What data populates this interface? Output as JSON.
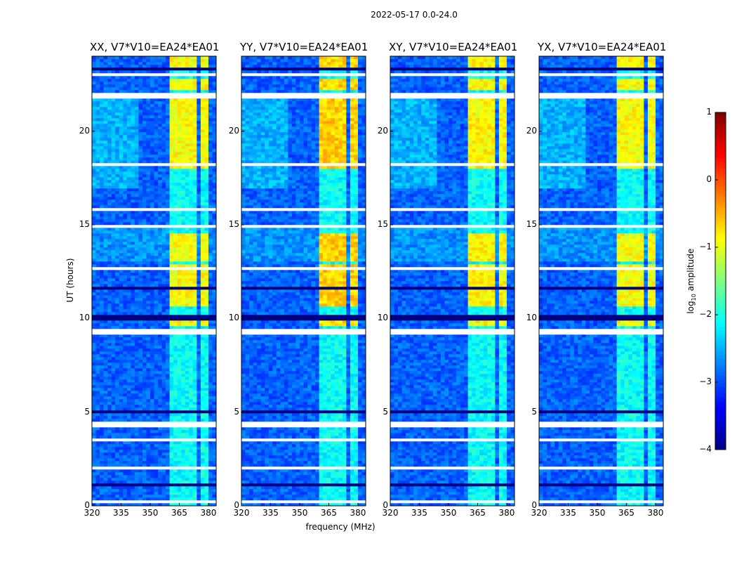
{
  "chart_data": {
    "type": "heatmap",
    "title": "2022-05-17 0.0-24.0",
    "xlabel": "frequency (MHz)",
    "ylabel": "UT (hours)",
    "xlim": [
      320,
      384
    ],
    "ylim": [
      0,
      24
    ],
    "xticks": [
      "320",
      "335",
      "350",
      "365",
      "380"
    ],
    "xtick_values": [
      320,
      335,
      350,
      365,
      380
    ],
    "yticks": [
      "0",
      "5",
      "10",
      "15",
      "20"
    ],
    "ytick_values": [
      0,
      5,
      10,
      15,
      20
    ],
    "panels": [
      {
        "title": "XX, V7*V10=EA24*EA01",
        "band_boost": 0.0
      },
      {
        "title": "YY, V7*V10=EA24*EA01",
        "band_boost": 0.25
      },
      {
        "title": "XY, V7*V10=EA24*EA01",
        "band_boost": 0.05
      },
      {
        "title": "YX, V7*V10=EA24*EA01",
        "band_boost": 0.0
      }
    ],
    "background_log10_amplitude": -2.9,
    "rfi_subbands_MHz": [
      [
        361,
        365.5
      ],
      [
        366.5,
        370
      ],
      [
        371,
        374.5
      ],
      [
        375.5,
        379.5
      ]
    ],
    "rfi_strong_hours": [
      [
        9.6,
        10.0
      ],
      [
        10.6,
        12.9
      ],
      [
        13.1,
        14.5
      ],
      [
        18.0,
        21.8
      ],
      [
        22.2,
        22.8
      ],
      [
        23.2,
        24.0
      ]
    ],
    "rfi_strong_log10_amplitude": -0.9,
    "rfi_weak_log10_amplitude": -2.1,
    "flagged_hours": [
      [
        0.15,
        0.3
      ],
      [
        2.0,
        2.05
      ],
      [
        3.5,
        3.6
      ],
      [
        4.2,
        4.5
      ],
      [
        5.8,
        5.85
      ],
      [
        8.5,
        8.6
      ],
      [
        9.2,
        9.4
      ],
      [
        12.6,
        12.7
      ],
      [
        14.8,
        15.0
      ],
      [
        15.7,
        15.9
      ],
      [
        17.5,
        17.6
      ],
      [
        18.2,
        18.3
      ],
      [
        21.8,
        22.1
      ],
      [
        23.0,
        23.05
      ]
    ],
    "dropout_hours": [
      [
        1.1,
        1.15
      ],
      [
        2.5,
        2.55
      ],
      [
        5.0,
        5.05
      ],
      [
        6.55,
        6.65
      ],
      [
        7.2,
        7.25
      ],
      [
        9.9,
        10.15
      ],
      [
        10.9,
        10.95
      ],
      [
        11.6,
        11.65
      ],
      [
        14.2,
        14.25
      ],
      [
        16.5,
        16.55
      ],
      [
        19.0,
        19.05
      ],
      [
        21.3,
        21.35
      ],
      [
        22.8,
        22.85
      ],
      [
        23.3,
        23.35
      ]
    ],
    "colorbar": {
      "label": "log10 amplitude",
      "range": [
        -4,
        1
      ],
      "ticks": [
        "1",
        "0",
        "−1",
        "−2",
        "−3",
        "−4"
      ],
      "tick_values": [
        1,
        0,
        -1,
        -2,
        -3,
        -4
      ],
      "colormap": "jet"
    }
  }
}
